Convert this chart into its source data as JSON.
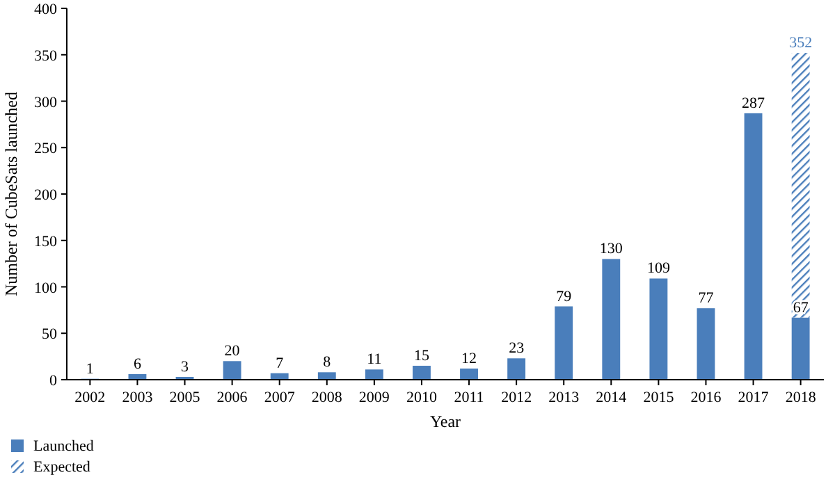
{
  "chart_data": {
    "type": "bar",
    "xlabel": "Year",
    "ylabel": "Number of CubeSats launched",
    "categories": [
      "2002",
      "2003",
      "2005",
      "2006",
      "2007",
      "2008",
      "2009",
      "2010",
      "2011",
      "2012",
      "2013",
      "2014",
      "2015",
      "2016",
      "2017",
      "2018"
    ],
    "stacked": true,
    "ylim": [
      0,
      400
    ],
    "yticks": [
      0,
      50,
      100,
      150,
      200,
      250,
      300,
      350,
      400
    ],
    "grid": false,
    "legend": "bottom left",
    "series": [
      {
        "name": "Launched",
        "color": "#4a7ebb",
        "values": [
          1,
          6,
          3,
          20,
          7,
          8,
          11,
          15,
          12,
          23,
          79,
          130,
          109,
          77,
          287,
          67
        ],
        "value_labels": [
          "1",
          "6",
          "3",
          "20",
          "7",
          "8",
          "11",
          "15",
          "12",
          "23",
          "79",
          "130",
          "109",
          "77",
          "287",
          "67"
        ]
      },
      {
        "name": "Expected",
        "color": "#4a7ebb",
        "values": [
          null,
          null,
          null,
          null,
          null,
          null,
          null,
          null,
          null,
          null,
          null,
          null,
          null,
          null,
          null,
          285
        ]
      }
    ],
    "totals": [
      null,
      null,
      null,
      null,
      null,
      null,
      null,
      null,
      null,
      null,
      null,
      null,
      null,
      null,
      null,
      "352"
    ]
  }
}
